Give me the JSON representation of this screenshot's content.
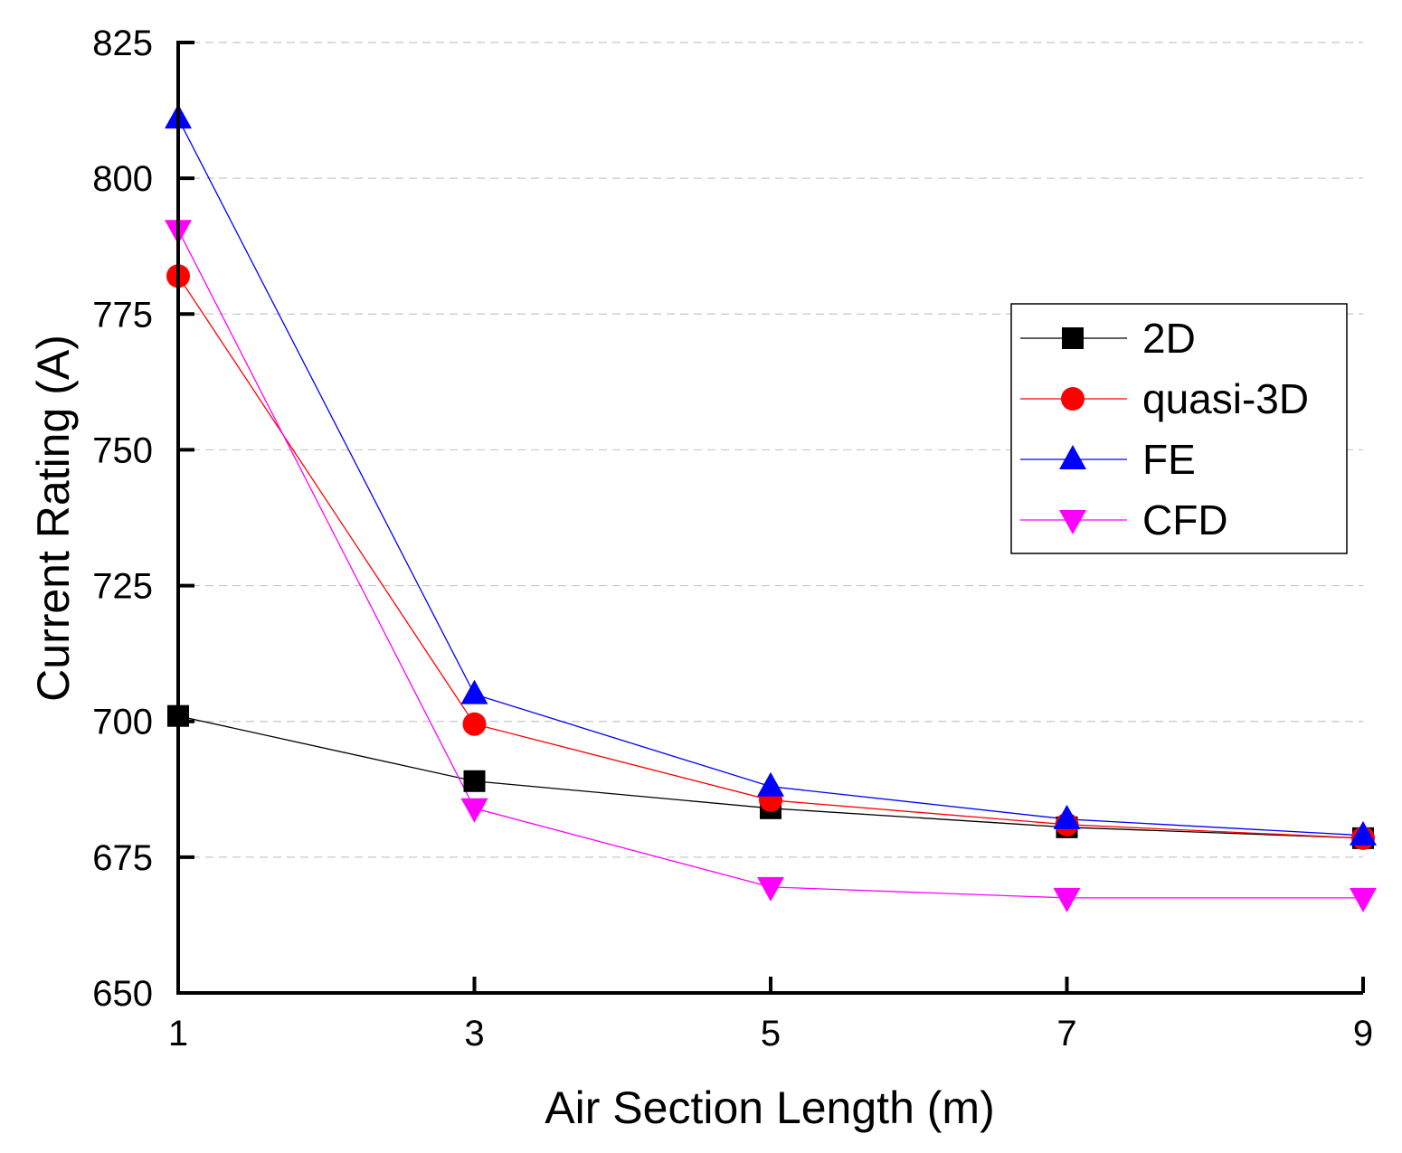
{
  "chart_data": {
    "type": "line",
    "title": "",
    "xlabel": "Air Section Length (m)",
    "ylabel": "Current Rating (A)",
    "x": [
      1,
      3,
      5,
      7,
      9
    ],
    "xticks": [
      1,
      3,
      5,
      7,
      9
    ],
    "xlim": [
      1,
      9
    ],
    "ylim": [
      650,
      825
    ],
    "yticks": [
      650,
      675,
      700,
      725,
      750,
      775,
      800,
      825
    ],
    "grid": true,
    "legend_position": "right",
    "series": [
      {
        "name": "2D",
        "values": [
          701,
          689,
          684,
          680.5,
          678.5
        ],
        "color": "#000000",
        "marker": "square"
      },
      {
        "name": "quasi-3D",
        "values": [
          782,
          699.5,
          685.5,
          681,
          678.5
        ],
        "color": "#ff0000",
        "marker": "circle"
      },
      {
        "name": "FE",
        "values": [
          811,
          705,
          688,
          682,
          679
        ],
        "color": "#0000ff",
        "marker": "triangle-up"
      },
      {
        "name": "CFD",
        "values": [
          790.5,
          684,
          669.5,
          667.5,
          667.5
        ],
        "color": "#ff00ff",
        "marker": "triangle-down"
      }
    ]
  }
}
